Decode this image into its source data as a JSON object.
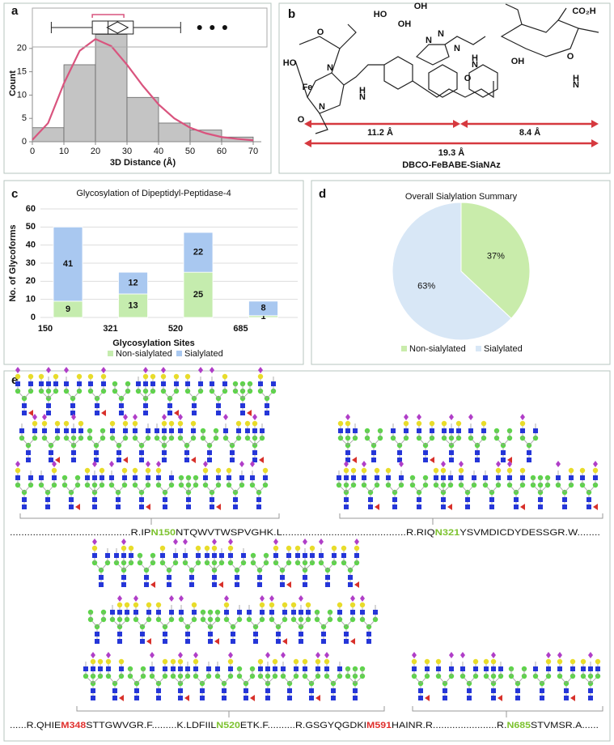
{
  "panel_labels": [
    "a",
    "b",
    "c",
    "d",
    "e"
  ],
  "chart_data": [
    {
      "type": "histogram",
      "x_label": "3D Distance (Å)",
      "y_label": "Count",
      "bins": [
        0,
        10,
        20,
        30,
        40,
        50,
        60,
        70
      ],
      "values": [
        3,
        16.5,
        23,
        9.5,
        4,
        2.5,
        1
      ],
      "color": "#c4c4c4",
      "xlim": [
        0,
        70
      ],
      "ylim": [
        0,
        25
      ],
      "xticks": [
        0,
        10,
        20,
        30,
        40,
        50,
        60,
        70
      ],
      "yticks": [
        0,
        5,
        10,
        15,
        20
      ],
      "fit": {
        "color": "#d9547e",
        "x": [
          0,
          5,
          10,
          15,
          20,
          25,
          30,
          35,
          40,
          45,
          50,
          55,
          60,
          65,
          70
        ],
        "values": [
          0.4,
          4,
          12.5,
          19.5,
          22,
          20.5,
          16.5,
          12,
          8,
          5,
          3,
          1.8,
          1,
          0.6,
          0.3
        ]
      },
      "box": {
        "whislo": 6,
        "q1": 19,
        "med": 24,
        "q3": 32,
        "whishi": 47,
        "mean": 27,
        "mean_ci": [
          19,
          29
        ],
        "fliers": [
          53,
          57,
          61
        ]
      }
    },
    {
      "type": "bar",
      "stacked": true,
      "title": "Glycosylation of Dipeptidyl-Peptidase-4",
      "x_label": "Glycosylation Sites",
      "y_label": "No. of Glycoforms",
      "categories": [
        "150",
        "321",
        "520",
        "685"
      ],
      "series": [
        {
          "name": "Non-sialylated",
          "color": "#c5ecae",
          "values": [
            9,
            13,
            25,
            1
          ]
        },
        {
          "name": "Sialylated",
          "color": "#a9c8f0",
          "values": [
            41,
            12,
            22,
            8
          ]
        }
      ],
      "ylim": [
        0,
        60
      ],
      "yticks": [
        0,
        10,
        20,
        30,
        40,
        50,
        60
      ],
      "grid": true
    },
    {
      "type": "pie",
      "title": "Overall Sialylation Summary",
      "labels": [
        "Non-sialylated",
        "Sialylated"
      ],
      "values": [
        37,
        63
      ],
      "value_labels": [
        "37%",
        "63%"
      ],
      "colors": [
        "#c9ecab",
        "#d8e7f6"
      ]
    }
  ],
  "structure": {
    "atoms": [
      "HO",
      "Fe",
      "N",
      "N",
      "O",
      "O",
      "H",
      "N",
      "N",
      "N",
      "N",
      "HO",
      "OH",
      "OH",
      "CO₂H",
      "H",
      "N",
      "OH",
      "O",
      "H",
      "N",
      "O"
    ],
    "distances": [
      "11.2 Å",
      "8.4 Å",
      "19.3 Å"
    ],
    "name": "DBCO-FeBABE-SiaNAz"
  },
  "sequences": [
    [
      "..........................................R.IP",
      "N150",
      "NTQWVTWSPVGHK.L...........................................R.RIQ",
      "N321",
      "YSVMDICDYDESSGR.W........"
    ],
    [
      "......R.QHIE",
      "M348",
      "STTGWVGR.F.........K.LDFIIL",
      "N520",
      "ETK.F..........R.GSGYQGDKI",
      "M591",
      "HAINR.R.......................R.",
      "N685",
      "STVMSR.A......"
    ]
  ]
}
